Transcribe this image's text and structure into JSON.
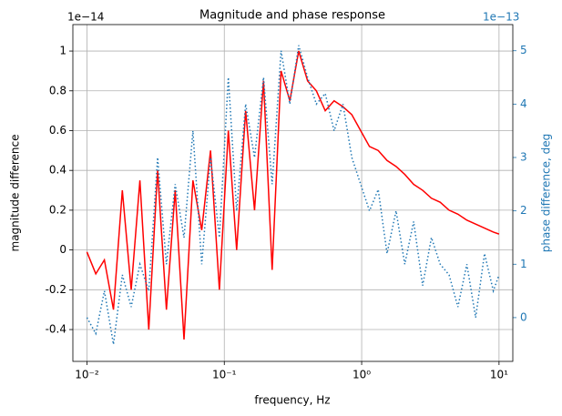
{
  "chart_data": {
    "type": "line",
    "title": "Magnitude and phase response",
    "xlabel": "frequency, Hz",
    "ylabel": "magnitude difference",
    "y2label": "phase difference, deg",
    "y_offset_label": "1e−14",
    "y2_offset_label": "1e−13",
    "xscale": "log",
    "grid": true,
    "y2color": "#1f77b4",
    "x": [
      0.01,
      0.0116,
      0.0134,
      0.0156,
      0.0181,
      0.021,
      0.0243,
      0.0282,
      0.0327,
      0.0379,
      0.0439,
      0.0509,
      0.0591,
      0.0685,
      0.0794,
      0.0921,
      0.107,
      0.123,
      0.143,
      0.166,
      0.193,
      0.223,
      0.259,
      0.3,
      0.348,
      0.404,
      0.468,
      0.543,
      0.63,
      0.731,
      0.848,
      0.983,
      1.14,
      1.32,
      1.53,
      1.78,
      2.06,
      2.39,
      2.78,
      3.22,
      3.73,
      4.33,
      5.02,
      5.83,
      6.76,
      7.84,
      9.09,
      10
    ],
    "series": [
      {
        "color": "#ff0000",
        "linestyle": "solid",
        "axis": "y",
        "values": [
          -0.01,
          -0.12,
          -0.05,
          -0.3,
          0.3,
          -0.2,
          0.35,
          -0.4,
          0.4,
          -0.3,
          0.3,
          -0.45,
          0.35,
          0.1,
          0.5,
          -0.2,
          0.6,
          0.0,
          0.7,
          0.2,
          0.85,
          -0.1,
          0.9,
          0.75,
          1.0,
          0.85,
          0.8,
          0.7,
          0.75,
          0.72,
          0.68,
          0.6,
          0.52,
          0.5,
          0.45,
          0.42,
          0.38,
          0.33,
          0.3,
          0.26,
          0.24,
          0.2,
          0.18,
          0.15,
          0.13,
          0.11,
          0.09,
          0.08
        ]
      },
      {
        "color": "#1f77b4",
        "linestyle": "dotted",
        "axis": "y2",
        "values": [
          0,
          -0.3,
          0.5,
          -0.5,
          0.8,
          0.2,
          1.0,
          0.5,
          3.0,
          1.0,
          2.5,
          1.5,
          3.5,
          1.0,
          3.0,
          1.5,
          4.5,
          2.0,
          4.0,
          3.0,
          4.5,
          2.5,
          5.0,
          4.0,
          5.1,
          4.5,
          4.0,
          4.2,
          3.5,
          4.0,
          3.0,
          2.5,
          2.0,
          2.4,
          1.2,
          2.0,
          1.0,
          1.8,
          0.6,
          1.5,
          1.0,
          0.8,
          0.2,
          1.0,
          0,
          1.2,
          0.5,
          0.8
        ]
      }
    ],
    "xlim": [
      0.0079,
      12.6
    ],
    "xticks": [
      {
        "value": 0.01,
        "label": "10⁻²"
      },
      {
        "value": 0.1,
        "label": "10⁻¹"
      },
      {
        "value": 1,
        "label": "10⁰"
      },
      {
        "value": 10,
        "label": "10¹"
      }
    ],
    "ylim": [
      -0.56,
      1.133
    ],
    "yticks": [
      -0.4,
      -0.2,
      0.0,
      0.2,
      0.4,
      0.6,
      0.8,
      1.0
    ],
    "y2lim": [
      -0.82,
      5.49
    ],
    "y2ticks": [
      0,
      1,
      2,
      3,
      4,
      5
    ]
  }
}
